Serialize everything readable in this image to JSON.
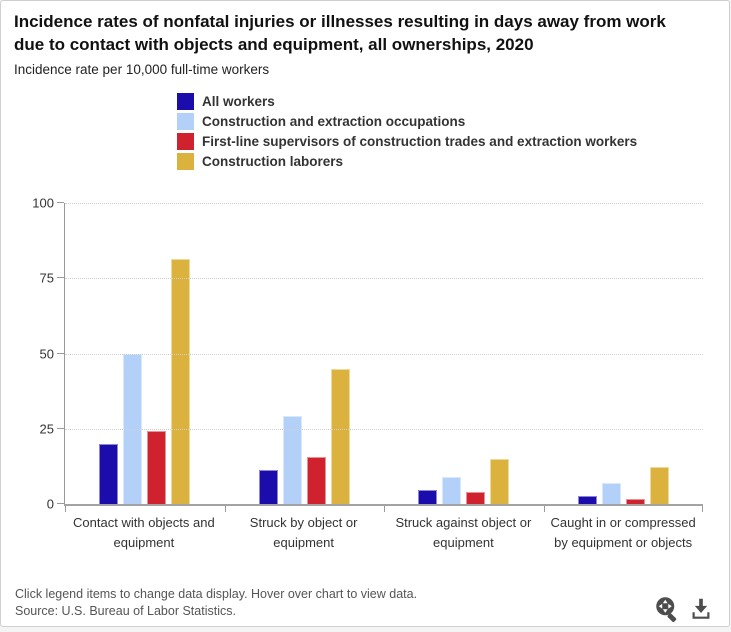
{
  "chart_data": {
    "type": "bar",
    "title": "Incidence rates of nonfatal injuries or illnesses resulting in days away from work due to contact with objects and equipment, all ownerships, 2020",
    "subtitle": "Incidence rate per 10,000 full-time workers",
    "categories": [
      "Contact with objects and equipment",
      "Struck by object or equipment",
      "Struck against object or equipment",
      "Caught in or compressed by equipment or objects"
    ],
    "series": [
      {
        "name": "All workers",
        "color": "#1a0dab",
        "values": [
          19.9,
          11.3,
          4.6,
          2.8
        ]
      },
      {
        "name": "Construction and extraction occupations",
        "color": "#b3d1f8",
        "values": [
          49.9,
          29.3,
          9.0,
          7.0
        ]
      },
      {
        "name": "First-line supervisors of construction trades and extraction workers",
        "color": "#d0222e",
        "values": [
          24.4,
          15.7,
          4.0,
          1.8
        ]
      },
      {
        "name": "Construction laborers",
        "color": "#dcb23f",
        "values": [
          81.3,
          45.0,
          15.1,
          12.3
        ]
      }
    ],
    "ylim": [
      0,
      100
    ],
    "yticks": [
      0,
      25,
      50,
      75,
      100
    ],
    "grid": "horizontal dotted",
    "legend_position": "top-left, vertical list"
  },
  "footer": {
    "note": "Click legend items to change data display. Hover over chart to view data.",
    "source": "Source: U.S. Bureau of Labor Statistics.",
    "zoom_icon": "pan-magnifier-icon",
    "download_icon": "download-icon"
  },
  "icon_color": "#4d4d4d"
}
